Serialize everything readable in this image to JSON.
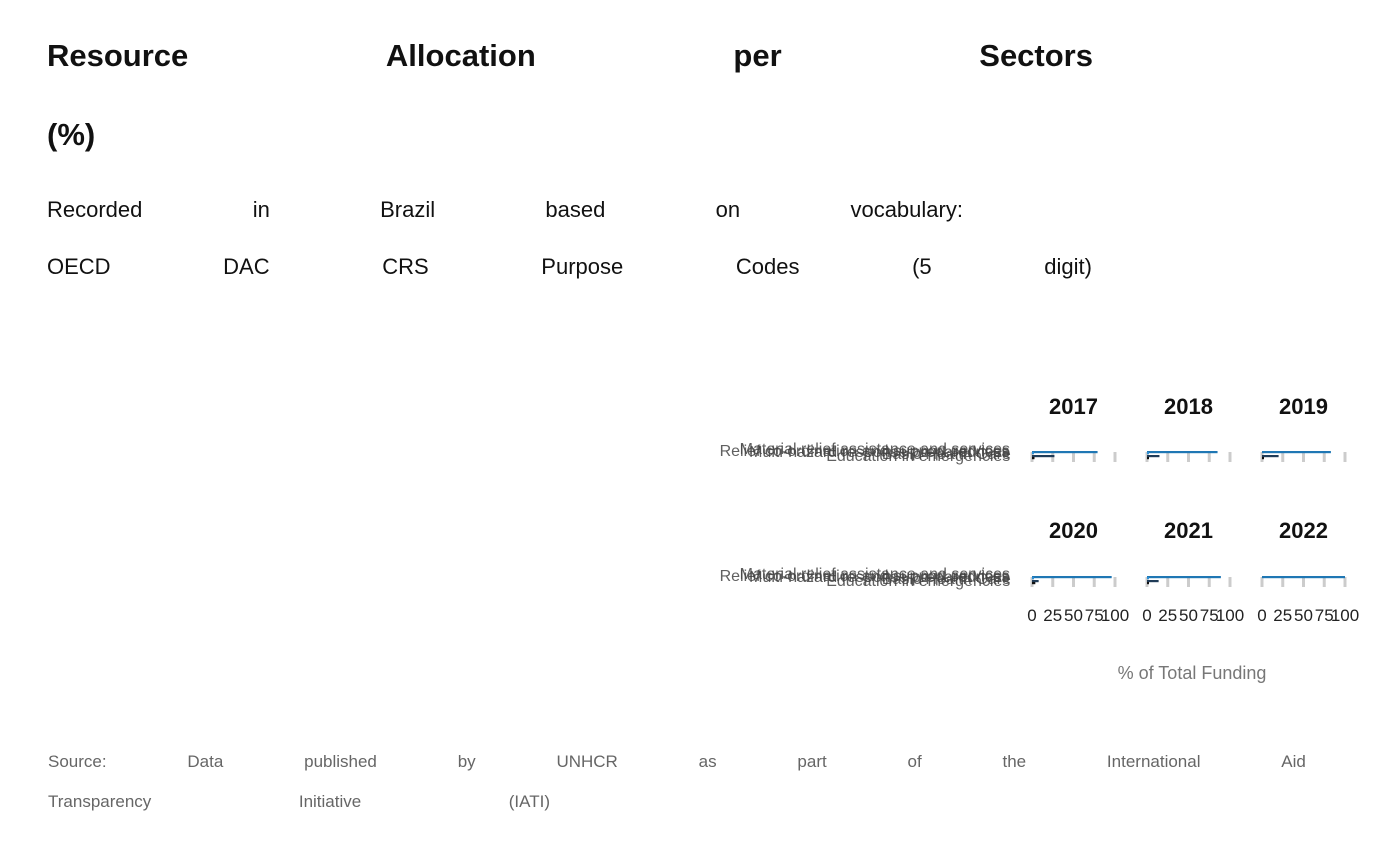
{
  "header": {
    "title_line1": [
      "Resource",
      "Allocation",
      "per",
      "Sectors"
    ],
    "title_line2": "(%)",
    "subtitle_line1": [
      "Recorded",
      "in",
      "Brazil",
      "based",
      "on",
      "vocabulary:"
    ],
    "subtitle_line2": [
      "OECD",
      "DAC",
      "CRS",
      "Purpose",
      "Codes",
      "(5",
      "digit)"
    ]
  },
  "footer": {
    "source_line1": [
      "Source:",
      "Data",
      "published",
      "by",
      "UNHCR",
      "as",
      "part",
      "of",
      "the",
      "International",
      "Aid"
    ],
    "source_line2": [
      "Transparency",
      "Initiative",
      "(IATI)"
    ]
  },
  "chart_data": {
    "type": "bar",
    "orientation": "horizontal",
    "facet_by": "year",
    "xlabel": "% of Total Funding",
    "xlim": [
      0,
      100
    ],
    "xticks": [
      0,
      25,
      50,
      75,
      100
    ],
    "categories": [
      "Material relief assistance and services",
      "Relief co-ordination and support services",
      "Multi-hazard response preparedness",
      "Basic Health Care",
      "Education in emergencies"
    ],
    "colors": [
      "#1f77b4",
      "#2b8fd6",
      "#5aa9e0",
      "#1f3b57",
      "#111111"
    ],
    "panels": [
      {
        "year": "2017",
        "values": [
          79,
          2,
          0,
          27,
          3
        ]
      },
      {
        "year": "2018",
        "values": [
          85,
          2,
          0,
          15,
          1
        ]
      },
      {
        "year": "2019",
        "values": [
          83,
          0,
          0,
          20,
          1
        ]
      },
      {
        "year": "2020",
        "values": [
          96,
          2,
          0,
          8,
          4
        ]
      },
      {
        "year": "2021",
        "values": [
          89,
          1,
          0,
          14,
          1
        ]
      },
      {
        "year": "2022",
        "values": [
          100,
          0,
          0,
          0,
          0
        ]
      }
    ]
  }
}
